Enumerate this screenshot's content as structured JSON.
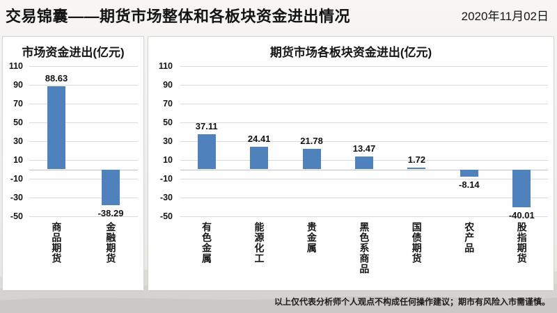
{
  "header": {
    "title": "交易锦囊——期货市场整体和各板块资金进出情况",
    "date": "2020年11月02日"
  },
  "footer": {
    "disclaimer": "以上仅代表分析师个人观点不构成任何操作建议；期市有风险入市需谨慎。"
  },
  "colors": {
    "bar": "#4f81bd",
    "grid": "#dadada",
    "text": "#141414"
  },
  "chart_data": [
    {
      "type": "bar",
      "title": "市场资金进出(亿元)",
      "categories": [
        "商品期货",
        "金融期货"
      ],
      "values": [
        88.63,
        -38.29
      ],
      "ylim": [
        -50,
        110
      ],
      "yticks": [
        110,
        90,
        70,
        50,
        30,
        10,
        -10,
        -30,
        -50
      ],
      "grid": true,
      "legend": "none",
      "bar_color": "#4f81bd"
    },
    {
      "type": "bar",
      "title": "期货市场各板块资金进出(亿元)",
      "categories": [
        "有色金属",
        "能源化工",
        "贵金属",
        "黑色系商品",
        "国债期货",
        "农产品",
        "股指期货"
      ],
      "values": [
        37.11,
        24.41,
        21.78,
        13.47,
        1.72,
        -8.14,
        -40.01
      ],
      "ylim": [
        -50,
        110
      ],
      "yticks": [
        110,
        90,
        70,
        50,
        30,
        10,
        -10,
        -30,
        -50
      ],
      "grid": true,
      "legend": "none",
      "bar_color": "#4f81bd"
    }
  ]
}
